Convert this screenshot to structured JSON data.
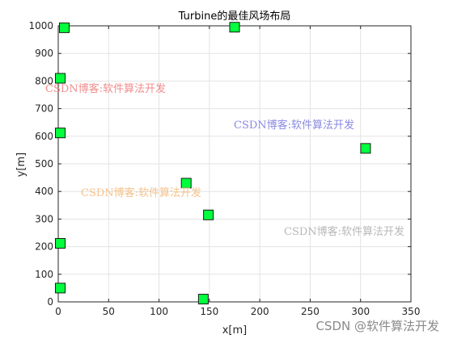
{
  "chart_data": {
    "type": "scatter",
    "title": "Turbine的最佳风场布局",
    "xlabel": "x[m]",
    "ylabel": "y[m]",
    "xlim": [
      0,
      350
    ],
    "ylim": [
      0,
      1000
    ],
    "xticks": [
      0,
      50,
      100,
      150,
      200,
      250,
      300,
      350
    ],
    "yticks": [
      0,
      100,
      200,
      300,
      400,
      500,
      600,
      700,
      800,
      900,
      1000
    ],
    "grid": true,
    "marker": "square",
    "marker_color": "#00ff3c",
    "series": [
      {
        "points": [
          {
            "x": 6,
            "y": 993
          },
          {
            "x": 175,
            "y": 995
          },
          {
            "x": 2,
            "y": 810
          },
          {
            "x": 2,
            "y": 612
          },
          {
            "x": 305,
            "y": 556
          },
          {
            "x": 127,
            "y": 430
          },
          {
            "x": 149,
            "y": 315
          },
          {
            "x": 2,
            "y": 212
          },
          {
            "x": 2,
            "y": 50
          },
          {
            "x": 144,
            "y": 10
          }
        ]
      }
    ]
  },
  "watermarks": [
    {
      "text": "CSDN博客:软件算法开发",
      "color": "#f08080"
    },
    {
      "text": "CSDN博客:软件算法开发",
      "color": "#8a8ae0"
    },
    {
      "text": "CSDN博客:软件算法开发",
      "color": "#f5c28a"
    },
    {
      "text": "CSDN博客:软件算法开发",
      "color": "#b8b8b8"
    }
  ],
  "footer": "CSDN @软件算法开发"
}
